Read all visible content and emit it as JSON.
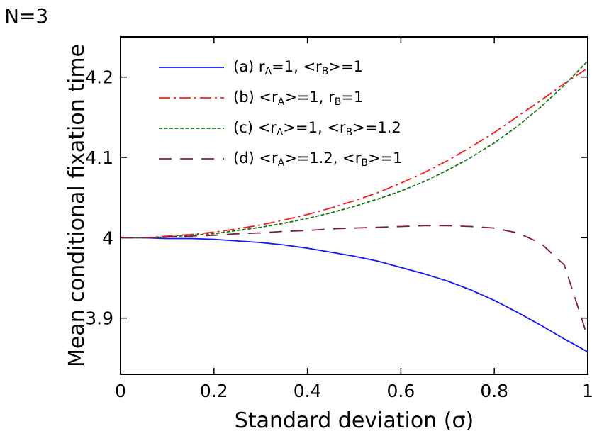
{
  "corner_label": "N=3",
  "chart_data": {
    "type": "line",
    "xlabel": "Standard deviation (σ)",
    "ylabel": "Mean conditional fixation time",
    "xlim": [
      0,
      1
    ],
    "ylim": [
      3.83,
      4.25
    ],
    "x_ticks": [
      0,
      0.2,
      0.4,
      0.6,
      0.8,
      1
    ],
    "x_tick_labels": [
      "0",
      "0.2",
      "0.4",
      "0.6",
      "0.8",
      "1"
    ],
    "y_ticks": [
      3.9,
      4.0,
      4.1,
      4.2
    ],
    "y_tick_labels": [
      "3.9",
      "4",
      "4.1",
      "4.2"
    ],
    "grid": false,
    "legend_position": "top-left",
    "x": [
      0,
      0.05,
      0.1,
      0.15,
      0.2,
      0.25,
      0.3,
      0.35,
      0.4,
      0.45,
      0.5,
      0.55,
      0.6,
      0.65,
      0.7,
      0.75,
      0.8,
      0.85,
      0.9,
      0.95,
      1.0
    ],
    "series": [
      {
        "key": "a",
        "legend": [
          {
            "t": "(a) r"
          },
          {
            "t": "A",
            "sub": true
          },
          {
            "t": "=1, <r"
          },
          {
            "t": "B",
            "sub": true
          },
          {
            "t": ">=1"
          }
        ],
        "color": "#1515ff",
        "dash": "solid",
        "values": [
          4.0,
          4.0,
          3.999,
          3.999,
          3.998,
          3.996,
          3.994,
          3.991,
          3.987,
          3.982,
          3.977,
          3.971,
          3.963,
          3.955,
          3.946,
          3.935,
          3.922,
          3.907,
          3.891,
          3.874,
          3.858
        ]
      },
      {
        "key": "b",
        "legend": [
          {
            "t": "(b) <r"
          },
          {
            "t": "A",
            "sub": true
          },
          {
            "t": ">=1, r"
          },
          {
            "t": "B",
            "sub": true
          },
          {
            "t": "=1"
          }
        ],
        "color": "#ff1a1a",
        "dash": "dashdot",
        "values": [
          4.0,
          4.0,
          4.002,
          4.004,
          4.007,
          4.011,
          4.016,
          4.022,
          4.029,
          4.037,
          4.046,
          4.056,
          4.068,
          4.081,
          4.096,
          4.113,
          4.131,
          4.151,
          4.171,
          4.192,
          4.211
        ]
      },
      {
        "key": "c",
        "legend": [
          {
            "t": "(c) <r"
          },
          {
            "t": "A",
            "sub": true
          },
          {
            "t": ">=1, <r"
          },
          {
            "t": "B",
            "sub": true
          },
          {
            "t": ">=1.2"
          }
        ],
        "color": "#127812",
        "dash": "dotted",
        "values": [
          4.0,
          4.0,
          4.001,
          4.003,
          4.005,
          4.009,
          4.013,
          4.018,
          4.024,
          4.031,
          4.039,
          4.048,
          4.058,
          4.07,
          4.084,
          4.1,
          4.118,
          4.139,
          4.163,
          4.19,
          4.22
        ]
      },
      {
        "key": "d",
        "legend": [
          {
            "t": "(d) <r"
          },
          {
            "t": "A",
            "sub": true
          },
          {
            "t": ">=1.2, <r"
          },
          {
            "t": "B",
            "sub": true
          },
          {
            "t": ">=1"
          }
        ],
        "color": "#7a1e46",
        "dash": "longdash",
        "values": [
          4.0,
          4.0,
          4.001,
          4.002,
          4.003,
          4.005,
          4.006,
          4.008,
          4.009,
          4.011,
          4.012,
          4.013,
          4.014,
          4.015,
          4.015,
          4.014,
          4.012,
          4.006,
          3.993,
          3.966,
          3.876
        ]
      }
    ]
  }
}
